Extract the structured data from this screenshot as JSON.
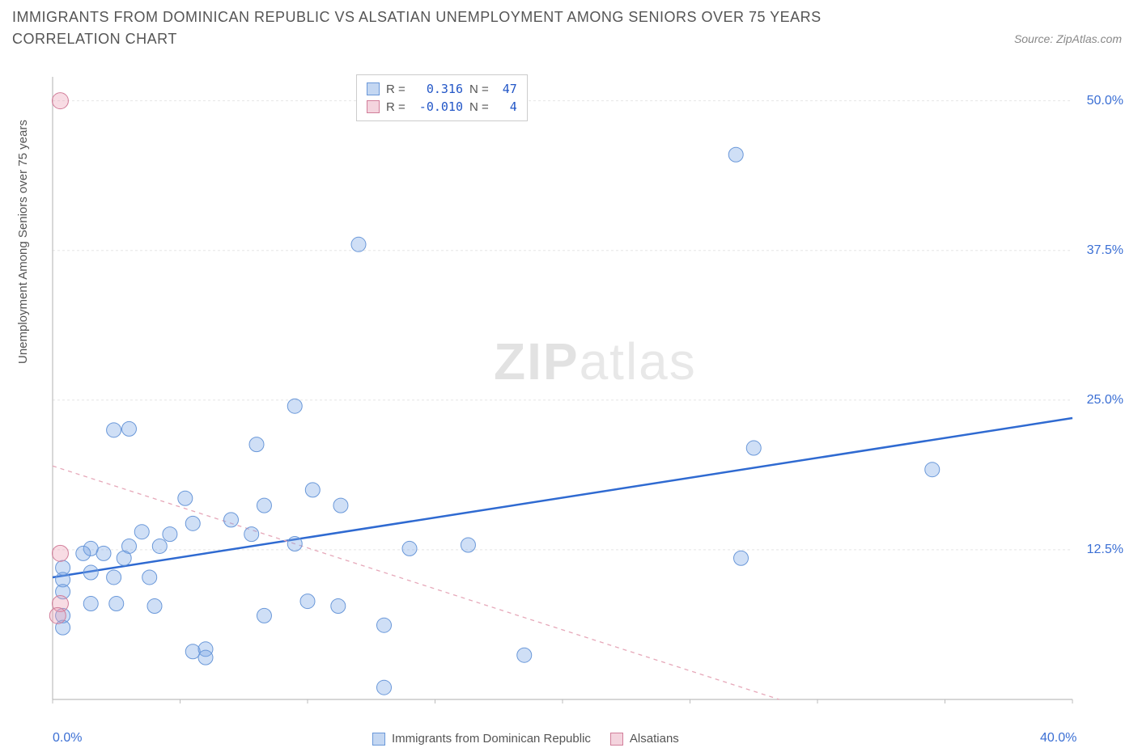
{
  "title": "IMMIGRANTS FROM DOMINICAN REPUBLIC VS ALSATIAN UNEMPLOYMENT AMONG SENIORS OVER 75 YEARS CORRELATION CHART",
  "source_label": "Source: ZipAtlas.com",
  "watermark": {
    "bold": "ZIP",
    "light": "atlas"
  },
  "chart": {
    "type": "scatter",
    "background_color": "#ffffff",
    "grid_color": "#e5e5e5",
    "axis_color": "#bdbdbd",
    "tick_color": "#bdbdbd",
    "x": {
      "min": 0,
      "max": 40,
      "ticks": [
        0,
        5,
        10,
        15,
        20,
        25,
        30,
        35,
        40
      ],
      "labels_shown": [
        0,
        40
      ],
      "label_suffix": "%"
    },
    "y": {
      "min": 0,
      "max": 52,
      "ticks": [
        12.5,
        25,
        37.5,
        50
      ],
      "label_suffix": "%",
      "axis_label": "Unemployment Among Seniors over 75 years"
    },
    "y_tick_label_color": "#3b6fd4",
    "x_tick_label_color": "#3b6fd4",
    "label_fontsize": 16,
    "series": [
      {
        "name": "Immigrants from Dominican Republic",
        "fill": "rgba(118,164,229,0.35)",
        "stroke": "#6a98d9",
        "marker_radius": 9,
        "trend": {
          "from": [
            0,
            10.2
          ],
          "to": [
            40,
            23.5
          ],
          "color": "#2f6ad1",
          "width": 2.5,
          "dash": "none"
        },
        "R": "0.316",
        "N": "47",
        "points": [
          [
            26.8,
            45.5
          ],
          [
            12.0,
            38.0
          ],
          [
            9.5,
            24.5
          ],
          [
            3.0,
            22.6
          ],
          [
            2.4,
            22.5
          ],
          [
            8.0,
            21.3
          ],
          [
            27.5,
            21.0
          ],
          [
            34.5,
            19.2
          ],
          [
            10.2,
            17.5
          ],
          [
            5.2,
            16.8
          ],
          [
            8.3,
            16.2
          ],
          [
            11.3,
            16.2
          ],
          [
            7.0,
            15.0
          ],
          [
            3.5,
            14.0
          ],
          [
            4.6,
            13.8
          ],
          [
            5.5,
            14.7
          ],
          [
            9.5,
            13.0
          ],
          [
            7.8,
            13.8
          ],
          [
            16.3,
            12.9
          ],
          [
            3.0,
            12.8
          ],
          [
            4.2,
            12.8
          ],
          [
            1.5,
            12.6
          ],
          [
            1.2,
            12.2
          ],
          [
            2.0,
            12.2
          ],
          [
            2.8,
            11.8
          ],
          [
            14.0,
            12.6
          ],
          [
            27.0,
            11.8
          ],
          [
            0.4,
            11.0
          ],
          [
            0.4,
            10.0
          ],
          [
            1.5,
            10.6
          ],
          [
            2.4,
            10.2
          ],
          [
            3.8,
            10.2
          ],
          [
            0.4,
            9.0
          ],
          [
            1.5,
            8.0
          ],
          [
            2.5,
            8.0
          ],
          [
            4.0,
            7.8
          ],
          [
            0.4,
            7.0
          ],
          [
            0.4,
            6.0
          ],
          [
            8.3,
            7.0
          ],
          [
            10.0,
            8.2
          ],
          [
            11.2,
            7.8
          ],
          [
            13.0,
            6.2
          ],
          [
            5.5,
            4.0
          ],
          [
            6.0,
            4.2
          ],
          [
            6.0,
            3.5
          ],
          [
            18.5,
            3.7
          ],
          [
            13.0,
            1.0
          ]
        ]
      },
      {
        "name": "Alsatians",
        "fill": "rgba(236,155,178,0.35)",
        "stroke": "#d27e9a",
        "marker_radius": 10,
        "trend": {
          "from": [
            0,
            19.5
          ],
          "to": [
            28.5,
            0
          ],
          "color": "#e6a8b9",
          "width": 1.3,
          "dash": "5,5"
        },
        "R": "-0.010",
        "N": "4",
        "points": [
          [
            0.3,
            50.0
          ],
          [
            0.3,
            12.2
          ],
          [
            0.3,
            8.0
          ],
          [
            0.2,
            7.0
          ]
        ]
      }
    ],
    "legend_top": {
      "swatch_blue_fill": "#c4d7f2",
      "swatch_blue_stroke": "#6a98d9",
      "swatch_pink_fill": "#f4d4de",
      "swatch_pink_stroke": "#d27e9a",
      "label_R": "R =",
      "label_N": "N ="
    },
    "legend_bottom": {
      "items": [
        {
          "label": "Immigrants from Dominican Republic",
          "fill": "#c4d7f2",
          "stroke": "#6a98d9"
        },
        {
          "label": "Alsatians",
          "fill": "#f4d4de",
          "stroke": "#d27e9a"
        }
      ]
    }
  }
}
